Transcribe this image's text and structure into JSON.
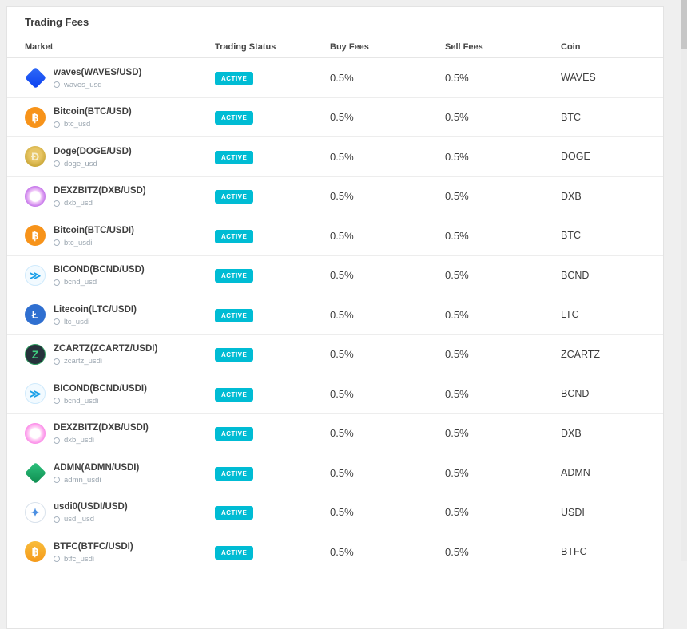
{
  "page": {
    "title": "Trading Fees"
  },
  "table": {
    "headers": [
      "Market",
      "Trading Status",
      "Buy Fees",
      "Sell Fees",
      "Coin"
    ],
    "status_color": "#00bcd4",
    "rows": [
      {
        "name": "waves(WAVES/USD)",
        "pair": "waves_usd",
        "status": "ACTIVE",
        "buy": "0.5%",
        "sell": "0.5%",
        "coin": "WAVES",
        "icon": {
          "shape": "diamond",
          "bg": "linear-gradient(135deg,#2f6bf7,#0b3ff0)",
          "fg": "#ffffff",
          "glyph": ""
        }
      },
      {
        "name": "Bitcoin(BTC/USD)",
        "pair": "btc_usd",
        "status": "ACTIVE",
        "buy": "0.5%",
        "sell": "0.5%",
        "coin": "BTC",
        "icon": {
          "shape": "circle",
          "bg": "#f7931a",
          "fg": "#ffffff",
          "glyph": "฿"
        }
      },
      {
        "name": "Doge(DOGE/USD)",
        "pair": "doge_usd",
        "status": "ACTIVE",
        "buy": "0.5%",
        "sell": "0.5%",
        "coin": "DOGE",
        "icon": {
          "shape": "circle",
          "bg": "radial-gradient(circle at 50% 42%, #e7c564 0 38%, #c9a636 75%)",
          "fg": "#f6eecb",
          "glyph": "Ð"
        }
      },
      {
        "name": "DEXZBITZ(DXB/USD)",
        "pair": "dxb_usd",
        "status": "ACTIVE",
        "buy": "0.5%",
        "sell": "0.5%",
        "coin": "DXB",
        "icon": {
          "shape": "circle",
          "bg": "radial-gradient(circle at 50% 50%, #ffffff 0 34%, #f0c8f8 42%, #c06ae8 74%, #7d54ee 100%)",
          "fg": "#ffffff",
          "glyph": ""
        }
      },
      {
        "name": "Bitcoin(BTC/USDI)",
        "pair": "btc_usdi",
        "status": "ACTIVE",
        "buy": "0.5%",
        "sell": "0.5%",
        "coin": "BTC",
        "icon": {
          "shape": "circle",
          "bg": "#f7931a",
          "fg": "#ffffff",
          "glyph": "฿"
        }
      },
      {
        "name": "BICOND(BCND/USD)",
        "pair": "bcnd_usd",
        "status": "ACTIVE",
        "buy": "0.5%",
        "sell": "0.5%",
        "coin": "BCND",
        "icon": {
          "shape": "circle",
          "bg": "#f2faff",
          "fg": "#1aa0e8",
          "glyph": "≫",
          "border": "#cfeafc"
        }
      },
      {
        "name": "Litecoin(LTC/USDI)",
        "pair": "ltc_usdi",
        "status": "ACTIVE",
        "buy": "0.5%",
        "sell": "0.5%",
        "coin": "LTC",
        "icon": {
          "shape": "circle",
          "bg": "#2f6fd0",
          "fg": "#ffffff",
          "glyph": "Ł"
        }
      },
      {
        "name": "ZCARTZ(ZCARTZ/USDI)",
        "pair": "zcartz_usdi",
        "status": "ACTIVE",
        "buy": "0.5%",
        "sell": "0.5%",
        "coin": "ZCARTZ",
        "icon": {
          "shape": "circle",
          "bg": "#26323b",
          "fg": "#3fd080",
          "glyph": "Z",
          "border": "#2f9a5f"
        }
      },
      {
        "name": "BICOND(BCND/USDI)",
        "pair": "bcnd_usdi",
        "status": "ACTIVE",
        "buy": "0.5%",
        "sell": "0.5%",
        "coin": "BCND",
        "icon": {
          "shape": "circle",
          "bg": "#f2faff",
          "fg": "#1aa0e8",
          "glyph": "≫",
          "border": "#cfeafc"
        }
      },
      {
        "name": "DEXZBITZ(DXB/USDI)",
        "pair": "dxb_usdi",
        "status": "ACTIVE",
        "buy": "0.5%",
        "sell": "0.5%",
        "coin": "DXB",
        "icon": {
          "shape": "circle",
          "bg": "radial-gradient(circle at 50% 50%, #ffffff 0 34%, #ffd6f6 42%, #fb7de6 75%, #f056cf 100%)",
          "fg": "#ffffff",
          "glyph": ""
        }
      },
      {
        "name": "ADMN(ADMN/USDI)",
        "pair": "admn_usdi",
        "status": "ACTIVE",
        "buy": "0.5%",
        "sell": "0.5%",
        "coin": "ADMN",
        "icon": {
          "shape": "diamond",
          "bg": "linear-gradient(135deg,#2ec27e,#0e8c4f)",
          "fg": "#ffffff",
          "glyph": ""
        }
      },
      {
        "name": "usdi0(USDI/USD)",
        "pair": "usdi_usd",
        "status": "ACTIVE",
        "buy": "0.5%",
        "sell": "0.5%",
        "coin": "USDI",
        "icon": {
          "shape": "circle",
          "bg": "#ffffff",
          "fg": "#4b8fe2",
          "glyph": "✦",
          "border": "#d9e2ec"
        }
      },
      {
        "name": "BTFC(BTFC/USDI)",
        "pair": "btfc_usdi",
        "status": "ACTIVE",
        "buy": "0.5%",
        "sell": "0.5%",
        "coin": "BTFC",
        "icon": {
          "shape": "circle",
          "bg": "linear-gradient(180deg,#f8bc3b,#f59a1a)",
          "fg": "#ffffff",
          "glyph": "฿"
        }
      }
    ]
  }
}
